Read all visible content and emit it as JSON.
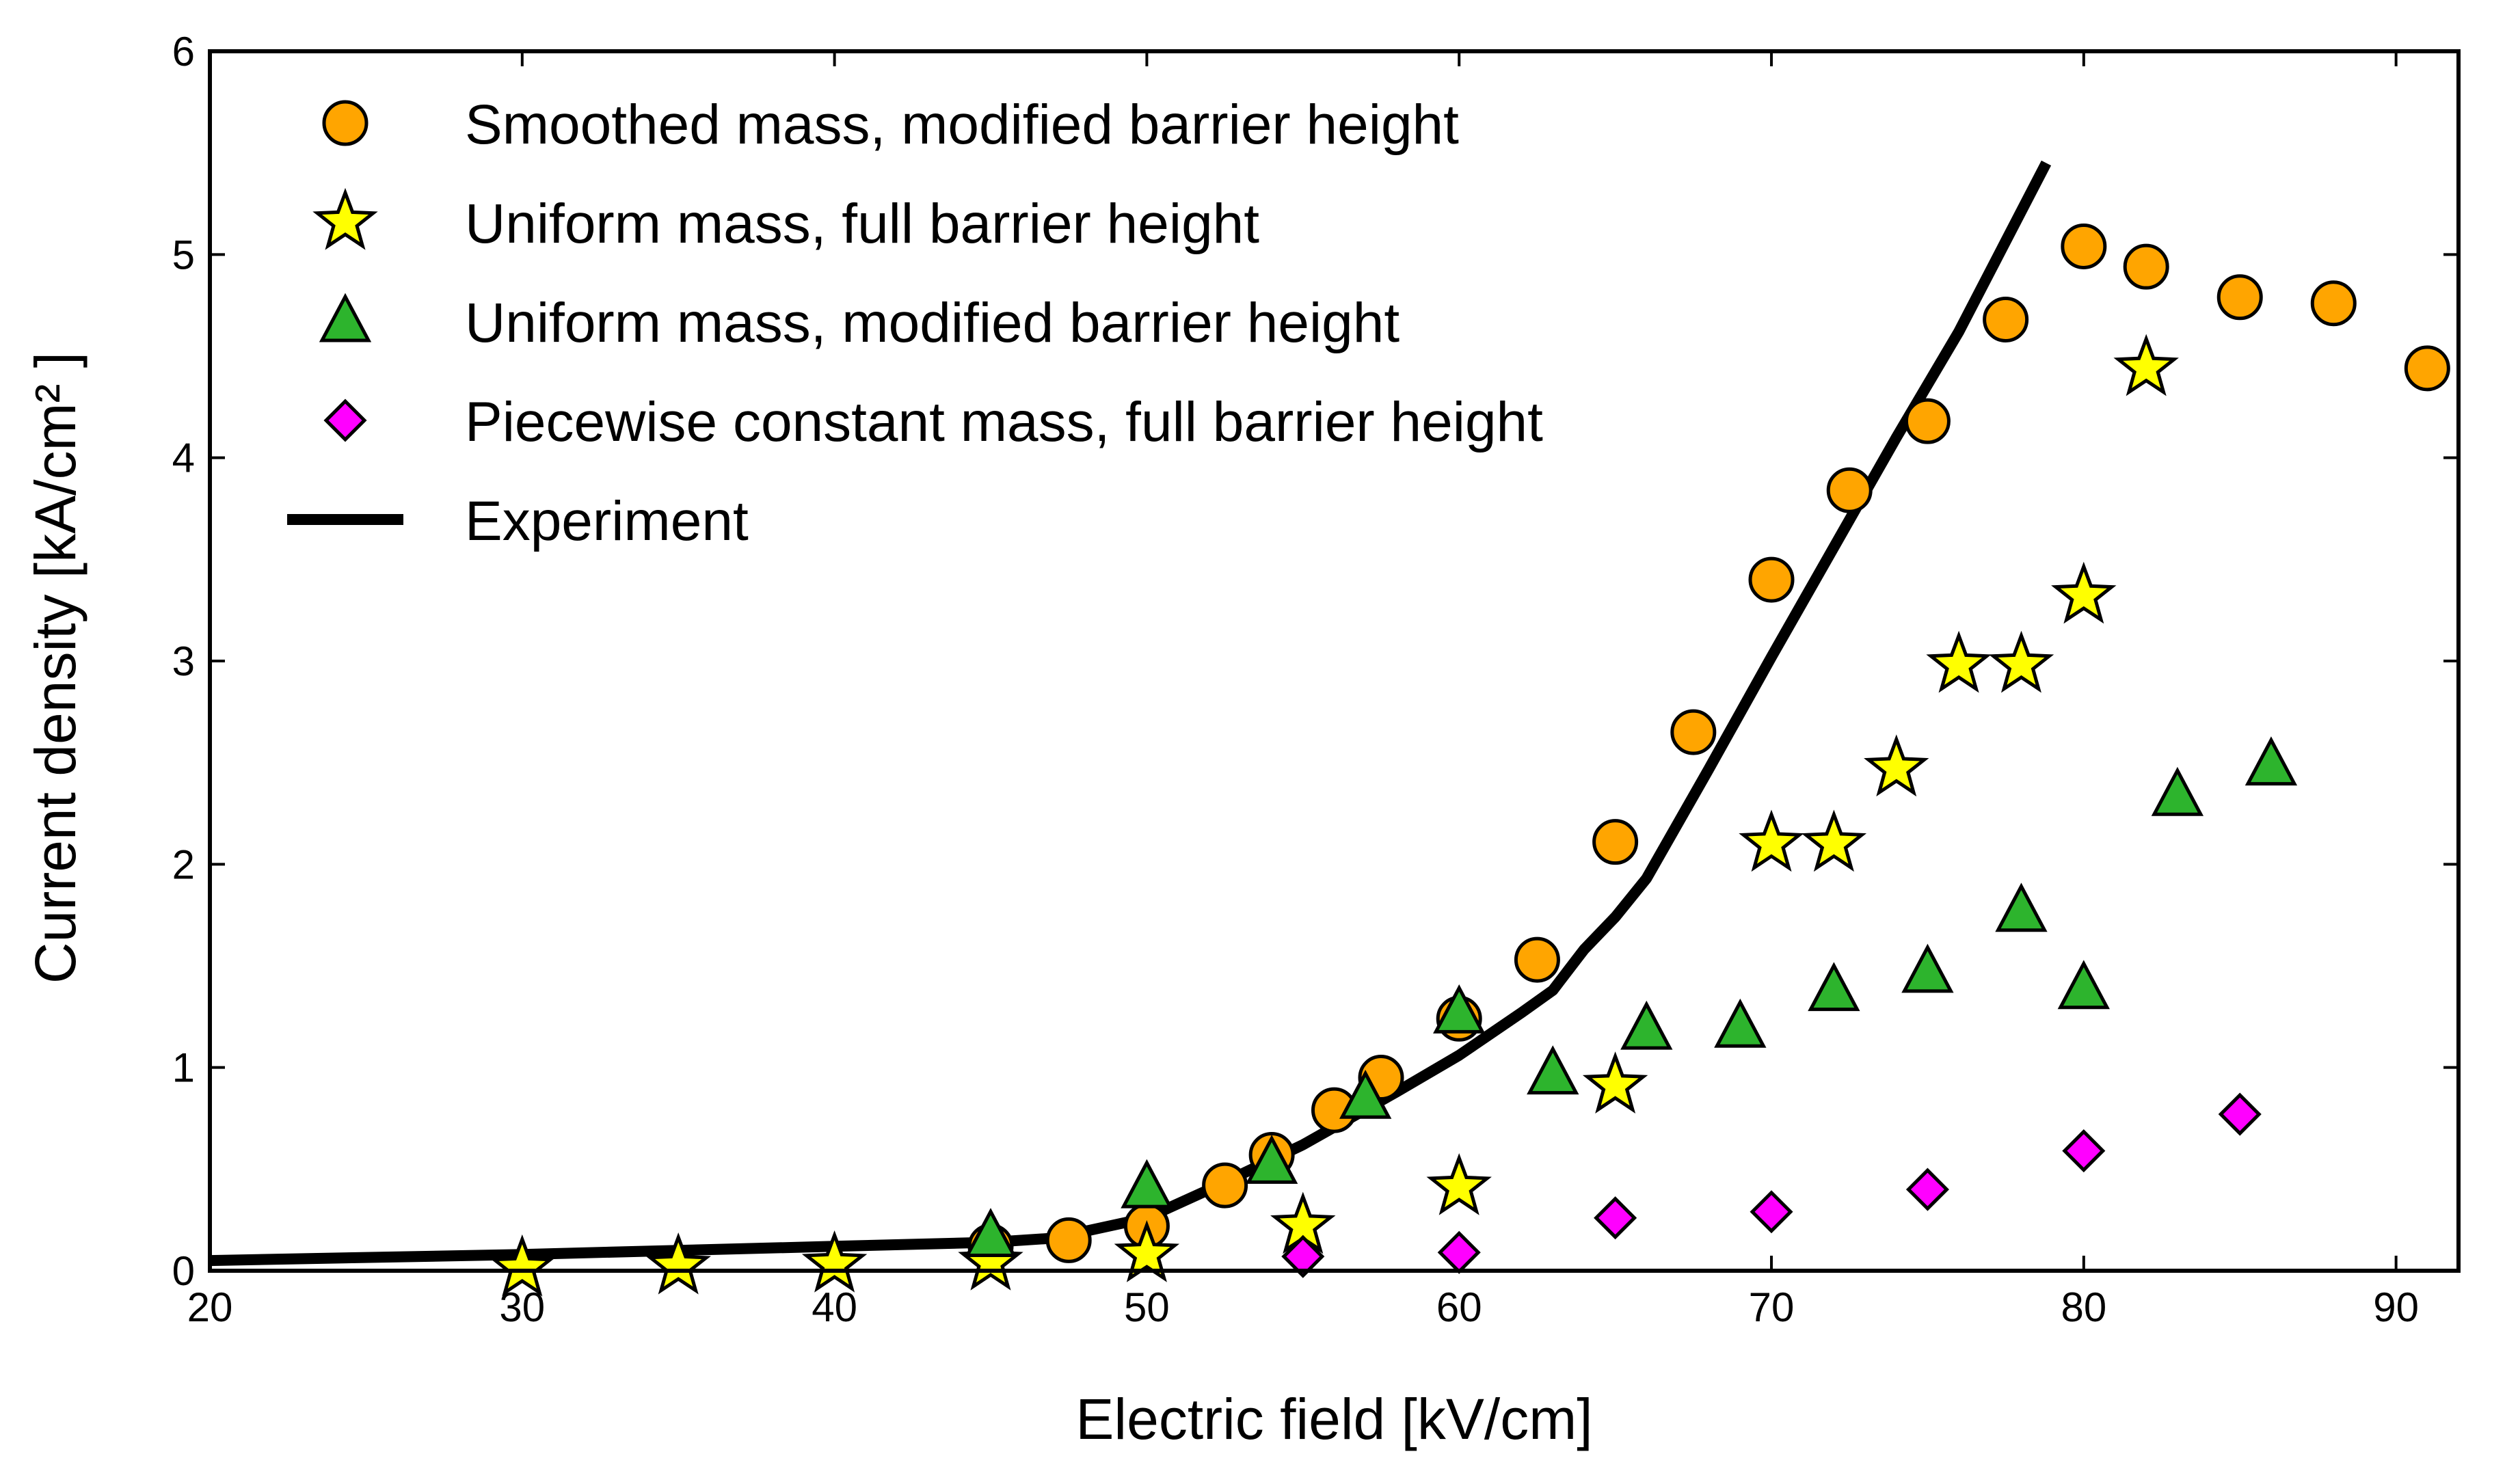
{
  "chart_data": {
    "type": "scatter",
    "title": "",
    "xlabel": "Electric field [kV/cm]",
    "ylabel": "Current density [kA/cm² ]",
    "xlim": [
      20,
      92
    ],
    "ylim": [
      0,
      6
    ],
    "xticks": [
      "20",
      "30",
      "40",
      "50",
      "60",
      "70",
      "80",
      "90"
    ],
    "yticks": [
      "0",
      "1",
      "2",
      "3",
      "4",
      "5",
      "6"
    ],
    "grid": false,
    "legend_position": "top-left",
    "series": [
      {
        "name": "Smoothed mass, modified barrier height",
        "marker": "circle",
        "color": "#FFA500",
        "x": [
          45,
          47.5,
          50,
          52.5,
          54,
          56,
          57.5,
          60,
          62.5,
          65,
          67.5,
          70,
          72.5,
          75,
          77.5,
          80,
          82,
          85,
          88,
          91
        ],
        "y": [
          0.12,
          0.15,
          0.22,
          0.42,
          0.57,
          0.79,
          0.95,
          1.24,
          1.53,
          2.11,
          2.65,
          3.4,
          3.84,
          4.18,
          4.68,
          5.04,
          4.94,
          4.79,
          4.76,
          4.44
        ]
      },
      {
        "name": "Uniform mass, full barrier height",
        "marker": "star",
        "color": "#FFFF00",
        "x": [
          30,
          35,
          40,
          45,
          50,
          55,
          60,
          65,
          70,
          72,
          74,
          76,
          78,
          80,
          82
        ],
        "y": [
          0.01,
          0.02,
          0.03,
          0.04,
          0.08,
          0.22,
          0.41,
          0.91,
          2.1,
          2.1,
          2.47,
          2.98,
          2.98,
          3.32,
          4.44
        ]
      },
      {
        "name": "Uniform mass, modified barrier height",
        "marker": "triangle",
        "color": "#2DB42D",
        "x": [
          45,
          50,
          54,
          57,
          60,
          63,
          66,
          69,
          72,
          75,
          78,
          80,
          83,
          86
        ],
        "y": [
          0.17,
          0.41,
          0.53,
          0.85,
          1.27,
          0.97,
          1.19,
          1.2,
          1.38,
          1.47,
          1.77,
          1.39,
          2.34,
          2.49
        ]
      },
      {
        "name": "Piecewise constant mass, full barrier height",
        "marker": "diamond",
        "color": "#FF00FF",
        "x": [
          55,
          60,
          65,
          70,
          75,
          80,
          85
        ],
        "y": [
          0.07,
          0.09,
          0.26,
          0.29,
          0.4,
          0.59,
          0.77
        ]
      },
      {
        "name": "Experiment",
        "marker": "line",
        "color": "#000000",
        "x": [
          20,
          30,
          40,
          45,
          47,
          50,
          52,
          55,
          58,
          60,
          62,
          63,
          64,
          65,
          66,
          68,
          70,
          72,
          74,
          76,
          78.8
        ],
        "y": [
          0.05,
          0.08,
          0.12,
          0.14,
          0.16,
          0.26,
          0.4,
          0.62,
          0.88,
          1.06,
          1.27,
          1.38,
          1.58,
          1.74,
          1.93,
          2.47,
          3.02,
          3.56,
          4.1,
          4.62,
          5.45
        ]
      }
    ]
  }
}
